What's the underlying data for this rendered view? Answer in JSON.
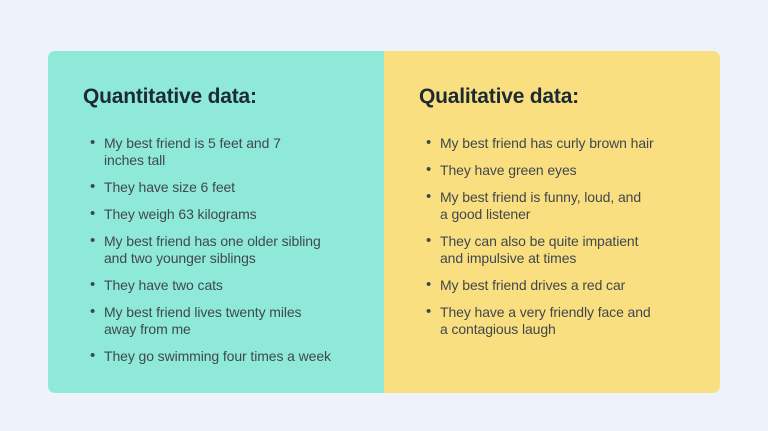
{
  "page": {
    "background_color": "#EEF3FB"
  },
  "text_colors": {
    "heading": "#1C2B33",
    "body": "#41484D"
  },
  "panels": [
    {
      "id": "quantitative",
      "title": "Quantitative data:",
      "background_color": "#8EE9D9",
      "items": [
        "My best friend is 5 feet and 7\ninches tall",
        "They have size 6 feet",
        "They weigh 63 kilograms",
        "My best friend has one older sibling\nand two younger siblings",
        "They have two cats",
        "My best friend lives twenty miles\naway from me",
        "They go swimming four times a week"
      ]
    },
    {
      "id": "qualitative",
      "title": "Qualitative data:",
      "background_color": "#F9DF80",
      "items": [
        "My best friend has curly brown hair",
        "They have green eyes",
        "My best friend is funny, loud, and\na good listener",
        "They can also be quite impatient\nand impulsive at times",
        "My best friend drives a red car",
        "They have a very friendly face and\na contagious laugh"
      ]
    }
  ]
}
